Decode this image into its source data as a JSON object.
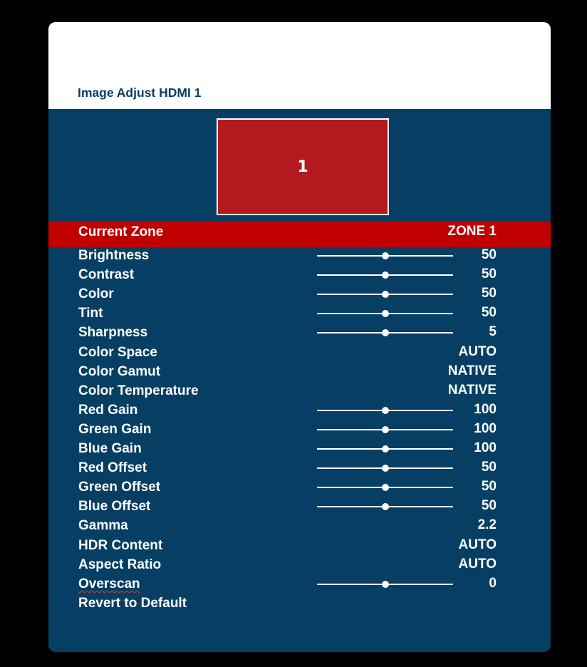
{
  "title": "Image Adjust HDMI 1",
  "zone_preview": {
    "label": "1"
  },
  "current_zone": {
    "label": "Current Zone",
    "value": "ZONE 1"
  },
  "settings": [
    {
      "label": "Brightness",
      "value": "50",
      "slider": true,
      "level": 0.5
    },
    {
      "label": "Contrast",
      "value": "50",
      "slider": true,
      "level": 0.5
    },
    {
      "label": "Color",
      "value": "50",
      "slider": true,
      "level": 0.5
    },
    {
      "label": "Tint",
      "value": "50",
      "slider": true,
      "level": 0.5
    },
    {
      "label": "Sharpness",
      "value": "5",
      "slider": true,
      "level": 0.5
    },
    {
      "label": "Color Space",
      "value": "AUTO",
      "slider": false
    },
    {
      "label": "Color Gamut",
      "value": "NATIVE",
      "slider": false
    },
    {
      "label": "Color Temperature",
      "value": "NATIVE",
      "slider": false
    },
    {
      "label": "Red Gain",
      "value": "100",
      "slider": true,
      "level": 0.5
    },
    {
      "label": "Green Gain",
      "value": "100",
      "slider": true,
      "level": 0.5
    },
    {
      "label": "Blue Gain",
      "value": "100",
      "slider": true,
      "level": 0.5
    },
    {
      "label": "Red Offset",
      "value": "50",
      "slider": true,
      "level": 0.5
    },
    {
      "label": "Green Offset",
      "value": "50",
      "slider": true,
      "level": 0.5
    },
    {
      "label": "Blue Offset",
      "value": "50",
      "slider": true,
      "level": 0.5
    },
    {
      "label": "Gamma",
      "value": "2.2",
      "slider": false
    },
    {
      "label": "HDR Content",
      "value": "AUTO",
      "slider": false
    },
    {
      "label": "Aspect Ratio",
      "value": "AUTO",
      "slider": false
    },
    {
      "label": "Overscan",
      "value": "0",
      "slider": true,
      "level": 0.5,
      "spellcheck_underline": true
    },
    {
      "label": "Revert to Default",
      "value": "",
      "slider": false
    }
  ],
  "colors": {
    "page_background": "#000000",
    "panel_background": "#063f63",
    "header_background": "#ffffff",
    "title_text": "#0a3d66",
    "highlight_row": "#c00000",
    "zone_preview_fill": "#b3191f",
    "text": "#ffffff"
  }
}
